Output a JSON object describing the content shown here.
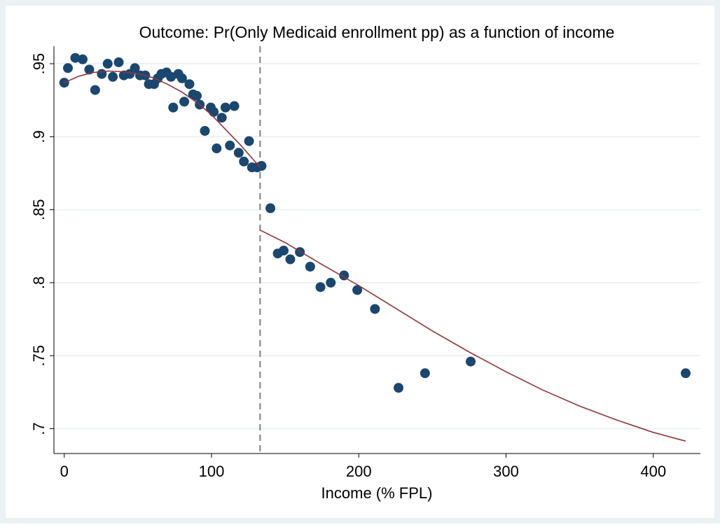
{
  "chart_data": {
    "type": "scatter",
    "title": "Outcome: Pr(Only Medicaid enrollment pp) as a function of income",
    "xlabel": "Income (% FPL)",
    "ylabel": "",
    "xlim": [
      -7,
      432
    ],
    "ylim": [
      0.683,
      0.962
    ],
    "xticks": [
      0,
      100,
      200,
      300,
      400
    ],
    "xtick_labels": [
      "0",
      "100",
      "200",
      "300",
      "400"
    ],
    "yticks": [
      0.7,
      0.75,
      0.8,
      0.85,
      0.9,
      0.95
    ],
    "ytick_labels": [
      ".7",
      ".75",
      ".8",
      ".85",
      ".9",
      ".95"
    ],
    "grid": "horizontal",
    "cutoff_x": 133,
    "colors": {
      "points": "#1a476f",
      "fit": "#90353b",
      "cutoff": "#808080",
      "grid": "#e8eef0",
      "frame": "#eaf2f3"
    },
    "points": [
      [
        0,
        0.937
      ],
      [
        2.5,
        0.947
      ],
      [
        7.5,
        0.954
      ],
      [
        12.5,
        0.953
      ],
      [
        17,
        0.946
      ],
      [
        21,
        0.932
      ],
      [
        25.5,
        0.943
      ],
      [
        29.5,
        0.95
      ],
      [
        33,
        0.941
      ],
      [
        37,
        0.951
      ],
      [
        40.5,
        0.942
      ],
      [
        44.5,
        0.943
      ],
      [
        48,
        0.947
      ],
      [
        51.5,
        0.942
      ],
      [
        55,
        0.942
      ],
      [
        57.5,
        0.936
      ],
      [
        61,
        0.936
      ],
      [
        63.5,
        0.94
      ],
      [
        66,
        0.943
      ],
      [
        69.5,
        0.944
      ],
      [
        72.5,
        0.941
      ],
      [
        74,
        0.92
      ],
      [
        77.5,
        0.943
      ],
      [
        80,
        0.94
      ],
      [
        81.5,
        0.924
      ],
      [
        85,
        0.936
      ],
      [
        87.5,
        0.929
      ],
      [
        90,
        0.928
      ],
      [
        92,
        0.922
      ],
      [
        95.5,
        0.904
      ],
      [
        99.5,
        0.92
      ],
      [
        101.5,
        0.917
      ],
      [
        103.5,
        0.892
      ],
      [
        107,
        0.913
      ],
      [
        109.5,
        0.92
      ],
      [
        112.5,
        0.894
      ],
      [
        115.5,
        0.921
      ],
      [
        118.5,
        0.889
      ],
      [
        122,
        0.883
      ],
      [
        125.5,
        0.897
      ],
      [
        127.5,
        0.879
      ],
      [
        131,
        0.879
      ],
      [
        134,
        0.88
      ],
      [
        140,
        0.851
      ],
      [
        145,
        0.82
      ],
      [
        149,
        0.822
      ],
      [
        153.5,
        0.816
      ],
      [
        160,
        0.821
      ],
      [
        167,
        0.811
      ],
      [
        174,
        0.797
      ],
      [
        181,
        0.8
      ],
      [
        190,
        0.805
      ],
      [
        199,
        0.795
      ],
      [
        211,
        0.782
      ],
      [
        227,
        0.728
      ],
      [
        245,
        0.738
      ],
      [
        276,
        0.746
      ],
      [
        422,
        0.738
      ]
    ],
    "fit_left": [
      [
        0,
        0.937
      ],
      [
        10,
        0.9415
      ],
      [
        20,
        0.944
      ],
      [
        30,
        0.945
      ],
      [
        40,
        0.9445
      ],
      [
        50,
        0.943
      ],
      [
        60,
        0.9405
      ],
      [
        70,
        0.936
      ],
      [
        80,
        0.9305
      ],
      [
        90,
        0.9235
      ],
      [
        100,
        0.915
      ],
      [
        110,
        0.9045
      ],
      [
        120,
        0.894
      ],
      [
        133,
        0.879
      ]
    ],
    "fit_right": [
      [
        133,
        0.836
      ],
      [
        150,
        0.8275
      ],
      [
        175,
        0.8125
      ],
      [
        200,
        0.798
      ],
      [
        225,
        0.7825
      ],
      [
        250,
        0.767
      ],
      [
        275,
        0.7525
      ],
      [
        300,
        0.739
      ],
      [
        325,
        0.7265
      ],
      [
        350,
        0.7155
      ],
      [
        375,
        0.706
      ],
      [
        400,
        0.6975
      ],
      [
        422,
        0.6915
      ]
    ]
  }
}
